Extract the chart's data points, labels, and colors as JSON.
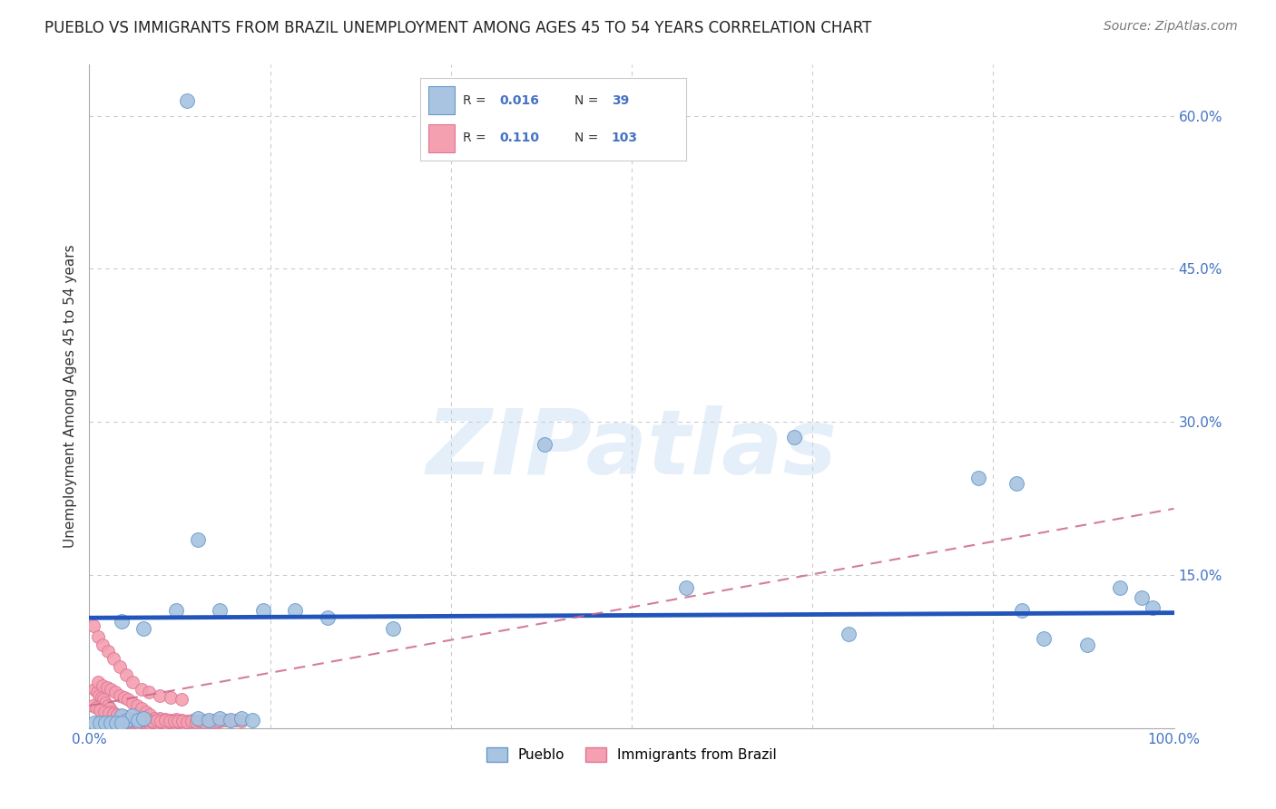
{
  "title": "PUEBLO VS IMMIGRANTS FROM BRAZIL UNEMPLOYMENT AMONG AGES 45 TO 54 YEARS CORRELATION CHART",
  "source": "Source: ZipAtlas.com",
  "ylabel": "Unemployment Among Ages 45 to 54 years",
  "watermark": "ZIPatlas",
  "xlim": [
    0,
    1.0
  ],
  "ylim": [
    0,
    0.65
  ],
  "title_color": "#222222",
  "title_fontsize": 12,
  "axis_color": "#4472c4",
  "grid_color": "#cccccc",
  "pueblo_color": "#a8c4e0",
  "brazil_color": "#f4a0b0",
  "pueblo_edge_color": "#6699cc",
  "brazil_edge_color": "#dd7799",
  "pueblo_R": "0.016",
  "pueblo_N": "39",
  "brazil_R": "0.110",
  "brazil_N": "103",
  "pueblo_scatter_x": [
    0.09,
    0.42,
    0.65,
    0.82,
    0.855,
    0.03,
    0.05,
    0.08,
    0.1,
    0.12,
    0.16,
    0.19,
    0.22,
    0.28,
    0.55,
    0.7,
    0.86,
    0.88,
    0.92,
    0.95,
    0.97,
    0.98,
    0.03,
    0.035,
    0.04,
    0.045,
    0.05,
    0.1,
    0.11,
    0.12,
    0.13,
    0.14,
    0.15,
    0.005,
    0.01,
    0.015,
    0.02,
    0.025,
    0.03
  ],
  "pueblo_scatter_y": [
    0.615,
    0.278,
    0.285,
    0.245,
    0.24,
    0.105,
    0.098,
    0.115,
    0.185,
    0.115,
    0.115,
    0.115,
    0.108,
    0.098,
    0.138,
    0.092,
    0.115,
    0.088,
    0.082,
    0.138,
    0.128,
    0.118,
    0.012,
    0.008,
    0.012,
    0.008,
    0.01,
    0.01,
    0.008,
    0.01,
    0.008,
    0.01,
    0.008,
    0.005,
    0.005,
    0.005,
    0.005,
    0.005,
    0.005
  ],
  "brazil_scatter_x": [
    0.005,
    0.007,
    0.009,
    0.011,
    0.013,
    0.015,
    0.017,
    0.019,
    0.021,
    0.023,
    0.025,
    0.027,
    0.03,
    0.033,
    0.036,
    0.039,
    0.042,
    0.045,
    0.048,
    0.052,
    0.055,
    0.058,
    0.062,
    0.066,
    0.07,
    0.074,
    0.078,
    0.082,
    0.086,
    0.09,
    0.008,
    0.012,
    0.016,
    0.02,
    0.024,
    0.028,
    0.032,
    0.036,
    0.04,
    0.044,
    0.048,
    0.052,
    0.056,
    0.06,
    0.065,
    0.07,
    0.075,
    0.08,
    0.085,
    0.09,
    0.095,
    0.1,
    0.105,
    0.11,
    0.115,
    0.12,
    0.125,
    0.13,
    0.135,
    0.14,
    0.003,
    0.006,
    0.01,
    0.014,
    0.018,
    0.022,
    0.026,
    0.03,
    0.034,
    0.038,
    0.042,
    0.046,
    0.05,
    0.054,
    0.058,
    0.062,
    0.066,
    0.07,
    0.074,
    0.078,
    0.082,
    0.086,
    0.09,
    0.094,
    0.098,
    0.102,
    0.106,
    0.11,
    0.114,
    0.118,
    0.004,
    0.008,
    0.012,
    0.017,
    0.022,
    0.028,
    0.034,
    0.04,
    0.048,
    0.055,
    0.065,
    0.075,
    0.085
  ],
  "brazil_scatter_y": [
    0.038,
    0.035,
    0.032,
    0.03,
    0.028,
    0.025,
    0.022,
    0.019,
    0.016,
    0.013,
    0.01,
    0.008,
    0.008,
    0.007,
    0.006,
    0.007,
    0.006,
    0.005,
    0.006,
    0.005,
    0.005,
    0.006,
    0.005,
    0.006,
    0.005,
    0.006,
    0.005,
    0.006,
    0.005,
    0.006,
    0.045,
    0.042,
    0.04,
    0.038,
    0.035,
    0.032,
    0.03,
    0.028,
    0.025,
    0.022,
    0.019,
    0.016,
    0.013,
    0.01,
    0.01,
    0.009,
    0.008,
    0.009,
    0.008,
    0.007,
    0.008,
    0.007,
    0.008,
    0.007,
    0.008,
    0.007,
    0.008,
    0.007,
    0.008,
    0.007,
    0.022,
    0.02,
    0.018,
    0.016,
    0.015,
    0.014,
    0.013,
    0.012,
    0.011,
    0.01,
    0.009,
    0.009,
    0.008,
    0.008,
    0.007,
    0.008,
    0.007,
    0.008,
    0.007,
    0.007,
    0.007,
    0.007,
    0.006,
    0.007,
    0.006,
    0.007,
    0.006,
    0.007,
    0.006,
    0.007,
    0.1,
    0.09,
    0.082,
    0.075,
    0.068,
    0.06,
    0.052,
    0.045,
    0.038,
    0.035,
    0.032,
    0.03,
    0.028
  ],
  "pueblo_trendline_x": [
    0.0,
    1.0
  ],
  "pueblo_trendline_y": [
    0.108,
    0.113
  ],
  "brazil_trendline_x": [
    0.0,
    1.0
  ],
  "brazil_trendline_y": [
    0.022,
    0.215
  ]
}
